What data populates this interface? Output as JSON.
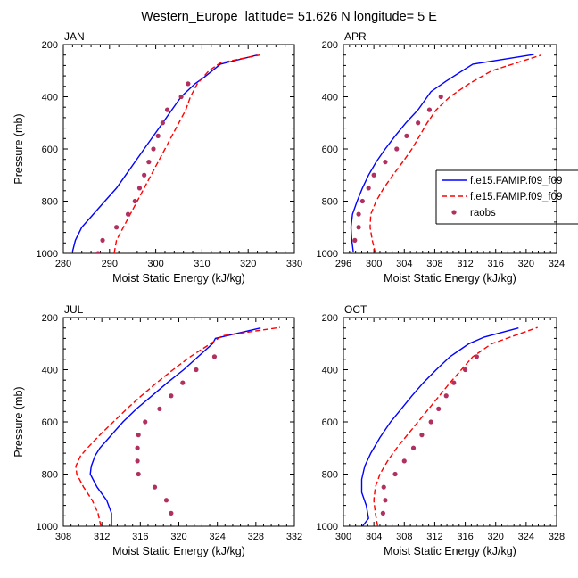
{
  "title": "Western_Europe  latitude= 51.626 N longitude= 5 E",
  "chart_data": [
    {
      "type": "line",
      "panel": "JAN",
      "xlabel": "Moist Static Energy (kJ/kg)",
      "ylabel": "Pressure (mb)",
      "xlim": [
        280,
        330
      ],
      "xticks": [
        280,
        290,
        300,
        310,
        320,
        330
      ],
      "ylim": [
        200,
        1000
      ],
      "yticks": [
        200,
        400,
        600,
        800,
        1000
      ],
      "y_inverted": true,
      "series": [
        {
          "name": "f.e15.FAMIP.f09_f09",
          "style": "solid",
          "color": "#0000ff",
          "points": [
            [
              282.0,
              992
            ],
            [
              282.6,
              950
            ],
            [
              284.0,
              900
            ],
            [
              286.5,
              850
            ],
            [
              289.0,
              800
            ],
            [
              291.5,
              750
            ],
            [
              293.5,
              700
            ],
            [
              295.5,
              650
            ],
            [
              297.5,
              600
            ],
            [
              299.5,
              550
            ],
            [
              301.5,
              500
            ],
            [
              303.5,
              450
            ],
            [
              305.5,
              400
            ],
            [
              308.5,
              350
            ],
            [
              310.5,
              325
            ],
            [
              314.0,
              275
            ],
            [
              322.0,
              240
            ]
          ]
        },
        {
          "name": "f.e15.FAMIP.f09_f09",
          "style": "dashed",
          "color": "#ff0000",
          "points": [
            [
              291.0,
              1000
            ],
            [
              291.5,
              950
            ],
            [
              293.0,
              900
            ],
            [
              294.5,
              850
            ],
            [
              296.0,
              800
            ],
            [
              297.5,
              750
            ],
            [
              299.0,
              700
            ],
            [
              300.5,
              650
            ],
            [
              302.0,
              600
            ],
            [
              303.5,
              550
            ],
            [
              305.0,
              500
            ],
            [
              306.5,
              450
            ],
            [
              307.5,
              400
            ],
            [
              309.0,
              350
            ],
            [
              311.5,
              300
            ],
            [
              314.0,
              270
            ],
            [
              322.5,
              240
            ]
          ]
        },
        {
          "name": "raobs",
          "style": "marker",
          "color": "#b03060",
          "points": [
            [
              287.5,
              1000
            ],
            [
              288.5,
              950
            ],
            [
              291.5,
              900
            ],
            [
              294.0,
              850
            ],
            [
              295.5,
              800
            ],
            [
              296.5,
              750
            ],
            [
              297.5,
              700
            ],
            [
              298.5,
              650
            ],
            [
              299.5,
              600
            ],
            [
              300.5,
              550
            ],
            [
              301.5,
              500
            ],
            [
              302.5,
              450
            ],
            [
              305.5,
              400
            ],
            [
              307.0,
              350
            ]
          ]
        }
      ]
    },
    {
      "type": "line",
      "panel": "APR",
      "xlabel": "Moist Static Energy (kJ/kg)",
      "ylabel": "",
      "xlim": [
        296,
        324
      ],
      "xticks": [
        296,
        300,
        304,
        308,
        312,
        316,
        320,
        324
      ],
      "ylim": [
        200,
        1000
      ],
      "yticks": [
        200,
        400,
        600,
        800,
        1000
      ],
      "y_inverted": true,
      "series": [
        {
          "name": "f.e15.FAMIP.f09_f09",
          "style": "solid",
          "color": "#0000ff",
          "points": [
            [
              297.3,
              995
            ],
            [
              297.1,
              950
            ],
            [
              297.0,
              900
            ],
            [
              297.2,
              850
            ],
            [
              297.8,
              800
            ],
            [
              298.5,
              750
            ],
            [
              299.3,
              700
            ],
            [
              300.3,
              650
            ],
            [
              301.5,
              600
            ],
            [
              302.8,
              550
            ],
            [
              304.2,
              500
            ],
            [
              305.8,
              450
            ],
            [
              307.5,
              380
            ],
            [
              309.5,
              340
            ],
            [
              313.0,
              275
            ],
            [
              321.0,
              238
            ]
          ]
        },
        {
          "name": "f.e15.FAMIP.f09_f09",
          "style": "dashed",
          "color": "#ff0000",
          "points": [
            [
              300.2,
              1000
            ],
            [
              299.8,
              950
            ],
            [
              299.5,
              900
            ],
            [
              299.6,
              850
            ],
            [
              300.3,
              800
            ],
            [
              301.3,
              750
            ],
            [
              302.5,
              700
            ],
            [
              303.8,
              650
            ],
            [
              305.0,
              600
            ],
            [
              306.0,
              550
            ],
            [
              307.0,
              500
            ],
            [
              308.2,
              450
            ],
            [
              310.0,
              400
            ],
            [
              312.5,
              350
            ],
            [
              315.5,
              300
            ],
            [
              322.0,
              240
            ]
          ]
        },
        {
          "name": "raobs",
          "style": "marker",
          "color": "#b03060",
          "points": [
            [
              297.5,
              950
            ],
            [
              298.0,
              900
            ],
            [
              298.0,
              850
            ],
            [
              298.5,
              800
            ],
            [
              299.3,
              750
            ],
            [
              300.0,
              700
            ],
            [
              301.5,
              650
            ],
            [
              303.0,
              600
            ],
            [
              304.3,
              550
            ],
            [
              305.8,
              500
            ],
            [
              307.3,
              450
            ],
            [
              308.8,
              400
            ]
          ]
        }
      ]
    },
    {
      "type": "line",
      "panel": "JUL",
      "xlabel": "Moist Static Energy (kJ/kg)",
      "ylabel": "Pressure (mb)",
      "xlim": [
        308,
        332
      ],
      "xticks": [
        308,
        312,
        316,
        320,
        324,
        328,
        332
      ],
      "ylim": [
        200,
        1000
      ],
      "yticks": [
        200,
        400,
        600,
        800,
        1000
      ],
      "y_inverted": true,
      "series": [
        {
          "name": "f.e15.FAMIP.f09_f09",
          "style": "solid",
          "color": "#0000ff",
          "points": [
            [
              313.0,
              1000
            ],
            [
              313.0,
              950
            ],
            [
              312.5,
              900
            ],
            [
              311.5,
              850
            ],
            [
              310.8,
              800
            ],
            [
              310.9,
              770
            ],
            [
              311.3,
              730
            ],
            [
              311.8,
              700
            ],
            [
              313.0,
              650
            ],
            [
              314.2,
              600
            ],
            [
              315.6,
              550
            ],
            [
              317.2,
              500
            ],
            [
              318.8,
              450
            ],
            [
              320.5,
              400
            ],
            [
              322.0,
              350
            ],
            [
              323.5,
              300
            ],
            [
              323.8,
              280
            ],
            [
              328.5,
              240
            ]
          ]
        },
        {
          "name": "f.e15.FAMIP.f09_f09",
          "style": "dashed",
          "color": "#ff0000",
          "points": [
            [
              311.9,
              1000
            ],
            [
              311.6,
              950
            ],
            [
              311.0,
              900
            ],
            [
              310.1,
              850
            ],
            [
              309.4,
              800
            ],
            [
              309.3,
              770
            ],
            [
              309.8,
              730
            ],
            [
              310.5,
              700
            ],
            [
              311.8,
              650
            ],
            [
              313.2,
              600
            ],
            [
              314.6,
              550
            ],
            [
              316.1,
              500
            ],
            [
              317.7,
              450
            ],
            [
              319.4,
              400
            ],
            [
              321.2,
              350
            ],
            [
              323.3,
              300
            ],
            [
              324.5,
              270
            ],
            [
              330.5,
              238
            ]
          ]
        },
        {
          "name": "raobs",
          "style": "marker",
          "color": "#b03060",
          "points": [
            [
              319.2,
              950
            ],
            [
              318.7,
              900
            ],
            [
              317.5,
              850
            ],
            [
              315.8,
              800
            ],
            [
              315.7,
              750
            ],
            [
              315.7,
              700
            ],
            [
              315.8,
              650
            ],
            [
              316.5,
              600
            ],
            [
              318.0,
              550
            ],
            [
              319.2,
              500
            ],
            [
              320.4,
              450
            ],
            [
              321.8,
              400
            ],
            [
              323.7,
              350
            ]
          ]
        }
      ]
    },
    {
      "type": "line",
      "panel": "OCT",
      "xlabel": "Moist Static Energy (kJ/kg)",
      "ylabel": "",
      "xlim": [
        300,
        328
      ],
      "xticks": [
        300,
        304,
        308,
        312,
        316,
        320,
        324,
        328
      ],
      "ylim": [
        200,
        1000
      ],
      "yticks": [
        200,
        400,
        600,
        800,
        1000
      ],
      "y_inverted": true,
      "series": [
        {
          "name": "f.e15.FAMIP.f09_f09",
          "style": "solid",
          "color": "#0000ff",
          "points": [
            [
              302.5,
              1000
            ],
            [
              303.3,
              970
            ],
            [
              303.0,
              920
            ],
            [
              302.4,
              870
            ],
            [
              302.4,
              820
            ],
            [
              302.8,
              770
            ],
            [
              303.6,
              720
            ],
            [
              304.8,
              660
            ],
            [
              306.2,
              600
            ],
            [
              307.6,
              550
            ],
            [
              309.0,
              500
            ],
            [
              310.5,
              450
            ],
            [
              312.2,
              400
            ],
            [
              314.0,
              350
            ],
            [
              316.5,
              300
            ],
            [
              318.5,
              275
            ],
            [
              323.0,
              240
            ]
          ]
        },
        {
          "name": "f.e15.FAMIP.f09_f09",
          "style": "dashed",
          "color": "#ff0000",
          "points": [
            [
              304.5,
              1000
            ],
            [
              304.2,
              950
            ],
            [
              304.0,
              900
            ],
            [
              304.2,
              850
            ],
            [
              304.8,
              800
            ],
            [
              305.8,
              750
            ],
            [
              307.0,
              700
            ],
            [
              308.4,
              650
            ],
            [
              309.8,
              600
            ],
            [
              311.2,
              550
            ],
            [
              312.6,
              500
            ],
            [
              314.0,
              450
            ],
            [
              315.5,
              400
            ],
            [
              317.0,
              350
            ],
            [
              319.5,
              300
            ],
            [
              325.5,
              238
            ]
          ]
        },
        {
          "name": "raobs",
          "style": "marker",
          "color": "#b03060",
          "points": [
            [
              305.2,
              950
            ],
            [
              305.5,
              900
            ],
            [
              305.3,
              850
            ],
            [
              306.8,
              800
            ],
            [
              308.0,
              750
            ],
            [
              309.2,
              700
            ],
            [
              310.3,
              650
            ],
            [
              311.5,
              600
            ],
            [
              312.5,
              550
            ],
            [
              313.5,
              500
            ],
            [
              314.5,
              450
            ],
            [
              316.0,
              400
            ],
            [
              317.5,
              350
            ]
          ]
        }
      ]
    }
  ],
  "legend": {
    "placement": "right of APR panel",
    "entries": [
      {
        "label": "f.e15.FAMIP.f09_f09",
        "style": "solid",
        "color": "#0000ff"
      },
      {
        "label": "f.e15.FAMIP.f09_f09",
        "style": "dashed",
        "color": "#ff0000"
      },
      {
        "label": "raobs",
        "style": "marker",
        "color": "#b03060"
      }
    ]
  }
}
